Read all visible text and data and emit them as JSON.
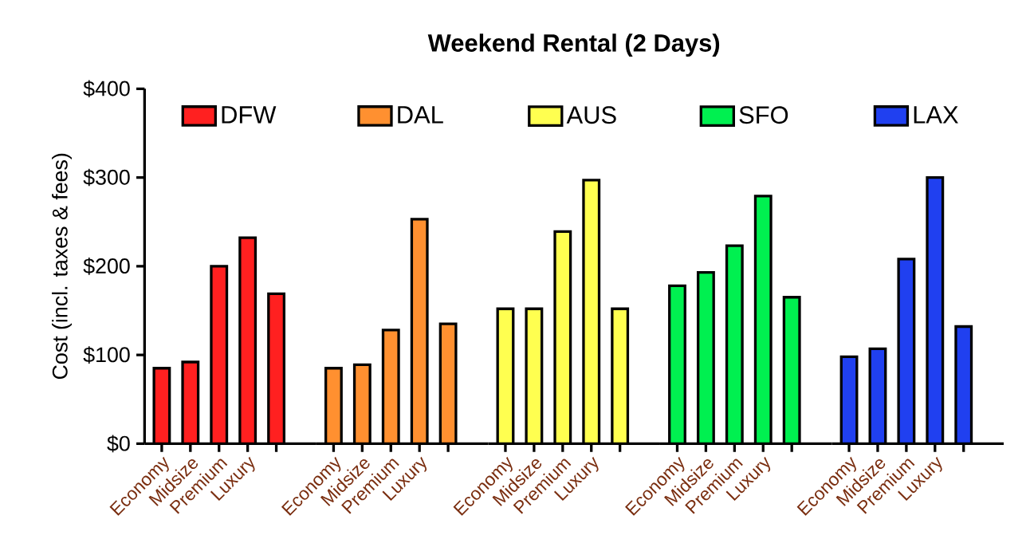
{
  "chart_data": [
    {
      "type": "bar",
      "grid": false,
      "ylabel": "Cost (incl. taxes & fees)",
      "categories": [
        "Economy",
        "Midsize",
        "Premium",
        "Luxury",
        null
      ],
      "series": [
        {
          "name": "DFW",
          "color": "#ff2020",
          "values": [
            85,
            92,
            200,
            232,
            169
          ]
        }
      ],
      "ylim": [
        0,
        400
      ],
      "yticks": [
        {
          "value": 0,
          "label": "$0"
        },
        {
          "value": 100,
          "label": "$100"
        },
        {
          "value": 200,
          "label": "$200"
        },
        {
          "value": 300,
          "label": "$300"
        },
        {
          "value": 400,
          "label": "$400"
        }
      ],
      "legend": "top"
    },
    {
      "type": "bar",
      "categories": [
        "Economy",
        "Midsize",
        "Premium",
        "Luxury",
        null
      ],
      "series": [
        {
          "name": "DAL",
          "color": "#ff9030",
          "values": [
            85,
            89,
            128,
            253,
            135
          ]
        }
      ],
      "ylim": [
        0,
        400
      ],
      "tick_labels": "x",
      "legend": "top"
    },
    {
      "type": "bar",
      "title": "Weekend Rental (2 Days)",
      "categories": [
        "Economy",
        "Midsize",
        "Premium",
        "Luxury",
        null
      ],
      "series": [
        {
          "name": "AUS",
          "color": "#ffff50",
          "values": [
            152,
            152,
            239,
            297,
            152
          ]
        }
      ],
      "ylim": [
        0,
        400
      ],
      "tick_labels": "x",
      "legend": "top"
    },
    {
      "type": "bar",
      "categories": [
        "Economy",
        "Midsize",
        "Premium",
        "Luxury",
        null
      ],
      "series": [
        {
          "name": "SFO",
          "color": "#00f050",
          "values": [
            178,
            193,
            223,
            279,
            165
          ]
        }
      ],
      "ylim": [
        0,
        400
      ],
      "tick_labels": "x",
      "legend": "top"
    },
    {
      "type": "bar",
      "categories": [
        "Economy",
        "Midsize",
        "Premium",
        "Luxury",
        null
      ],
      "series": [
        {
          "name": "LAX",
          "color": "#2040f0",
          "values": [
            98,
            107,
            208,
            300,
            132
          ]
        }
      ],
      "ylim": [
        0,
        400
      ],
      "tick_labels": "x",
      "legend": "top"
    }
  ]
}
